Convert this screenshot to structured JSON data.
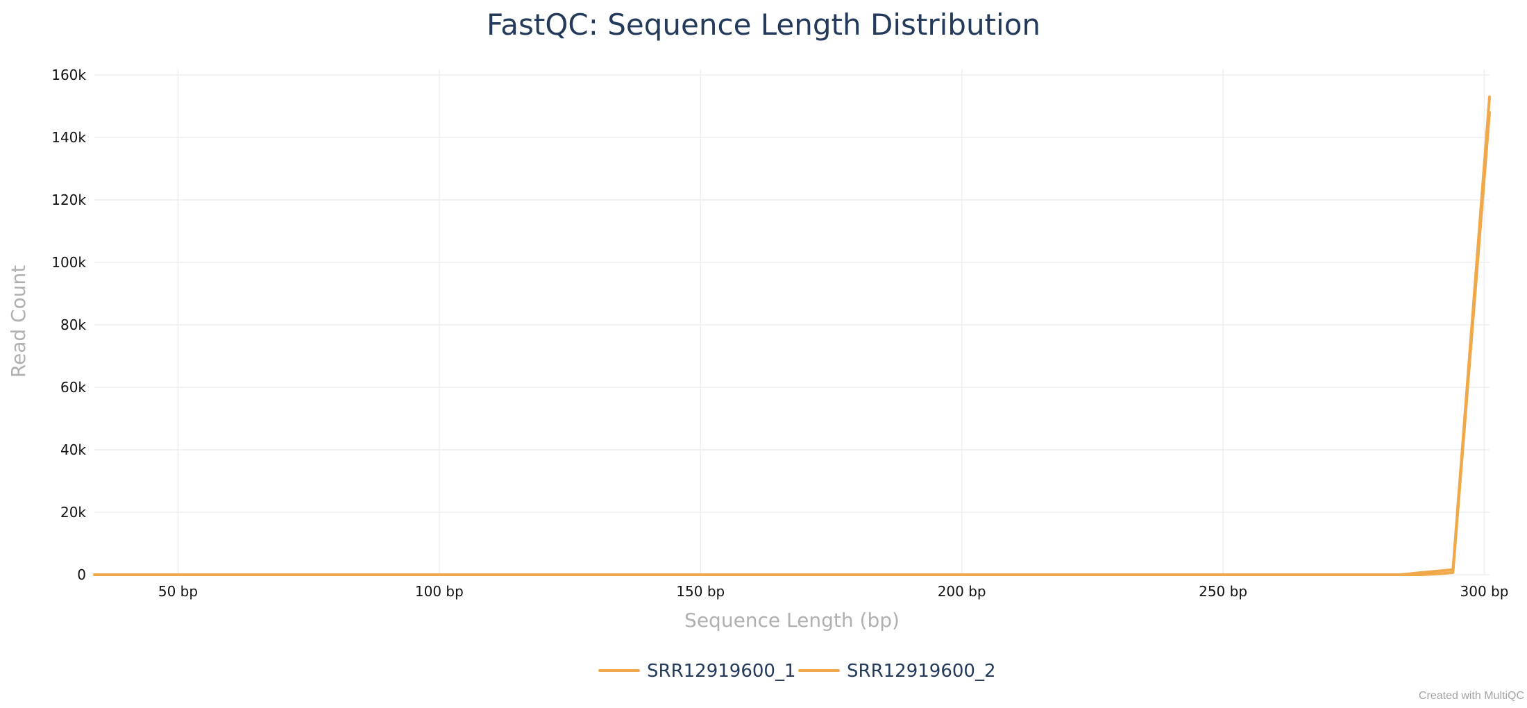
{
  "chart_data": {
    "type": "line",
    "title": "FastQC: Sequence Length Distribution",
    "xlabel": "Sequence Length (bp)",
    "ylabel": "Read Count",
    "xlim": [
      34,
      301
    ],
    "ylim": [
      0,
      160000
    ],
    "x_tick_values": [
      50,
      100,
      150,
      200,
      250,
      300
    ],
    "x_tick_labels": [
      "50 bp",
      "100 bp",
      "150 bp",
      "200 bp",
      "250 bp",
      "300 bp"
    ],
    "y_tick_values": [
      0,
      20000,
      40000,
      60000,
      80000,
      100000,
      120000,
      140000,
      160000
    ],
    "y_tick_labels": [
      "0",
      "20k",
      "40k",
      "60k",
      "80k",
      "100k",
      "120k",
      "140k",
      "160k"
    ],
    "grid": true,
    "legend_position": "bottom-center",
    "series": [
      {
        "name": "SRR12919600_1",
        "color": "#f0a94a",
        "x": [
          34,
          100,
          200,
          284,
          288,
          292,
          294,
          301
        ],
        "y": [
          0,
          0,
          0,
          0,
          700,
          1300,
          1600,
          153000
        ]
      },
      {
        "name": "SRR12919600_2",
        "color": "#f0a94a",
        "x": [
          34,
          100,
          200,
          288,
          292,
          294,
          301
        ],
        "y": [
          0,
          0,
          0,
          0,
          400,
          700,
          148000
        ]
      }
    ]
  },
  "footer": {
    "credit": "Created with MultiQC"
  }
}
